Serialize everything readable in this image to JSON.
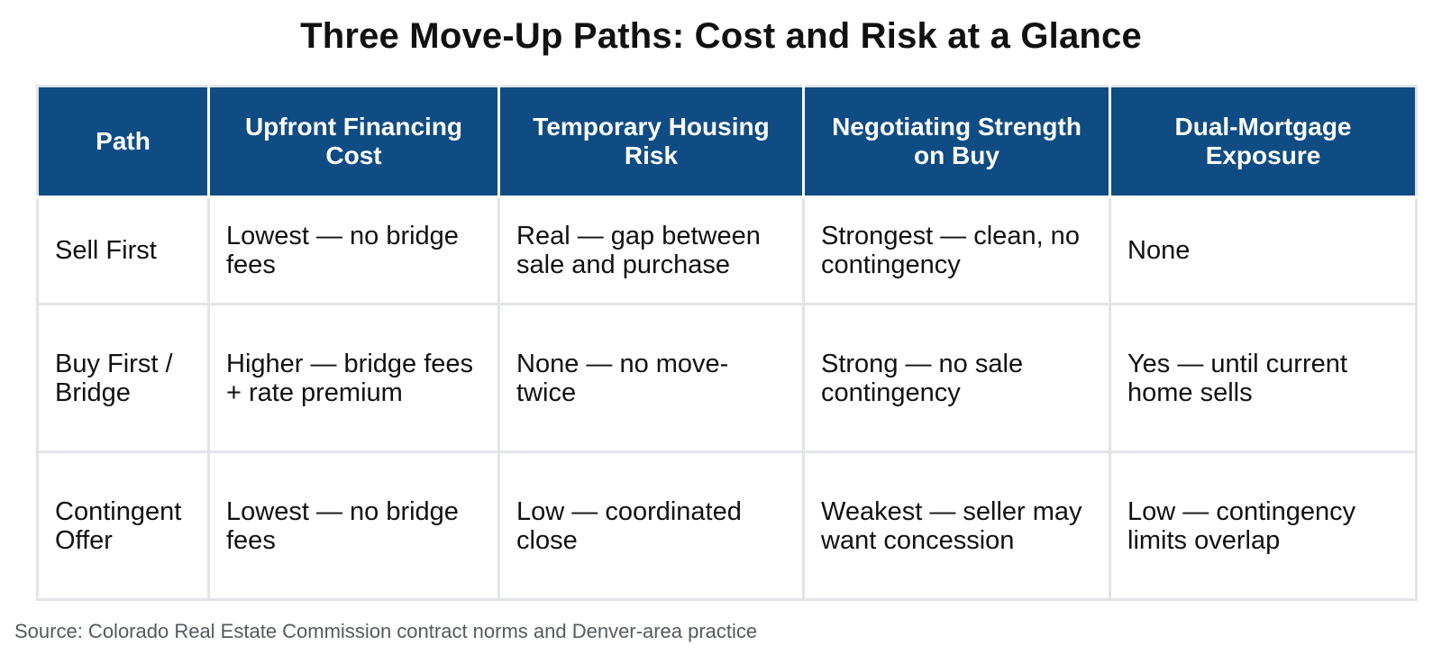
{
  "chart_data": {
    "type": "table",
    "title": "Three Move-Up Paths: Cost and Risk at a Glance",
    "columns": [
      "Path",
      "Upfront Financing Cost",
      "Temporary Housing Risk",
      "Negotiating Strength on Buy",
      "Dual-Mortgage Exposure"
    ],
    "rows": [
      {
        "path": "Sell First",
        "upfront_cost": "Lowest — no bridge fees",
        "housing_risk": "Real — gap between sale and purchase",
        "negotiating_strength": "Strongest — clean, no contingency",
        "dual_mortgage": "None"
      },
      {
        "path": "Buy First / Bridge",
        "upfront_cost": "Higher — bridge fees + rate premium",
        "housing_risk": "None — no move-twice",
        "negotiating_strength": "Strong — no sale contingency",
        "dual_mortgage": "Yes — until current home sells"
      },
      {
        "path": "Contingent Offer",
        "upfront_cost": "Lowest — no bridge fees",
        "housing_risk": "Low — coordinated close",
        "negotiating_strength": "Weakest — seller may want concession",
        "dual_mortgage": "Low — contingency limits overlap"
      }
    ],
    "source": "Source: Colorado Real Estate Commission contract norms and Denver-area practice"
  },
  "colors": {
    "header_background": "#0f4c84",
    "header_text": "#ffffff",
    "grid_line": "#e2e4e8",
    "body_text": "#111111",
    "source_text": "#555a60"
  }
}
